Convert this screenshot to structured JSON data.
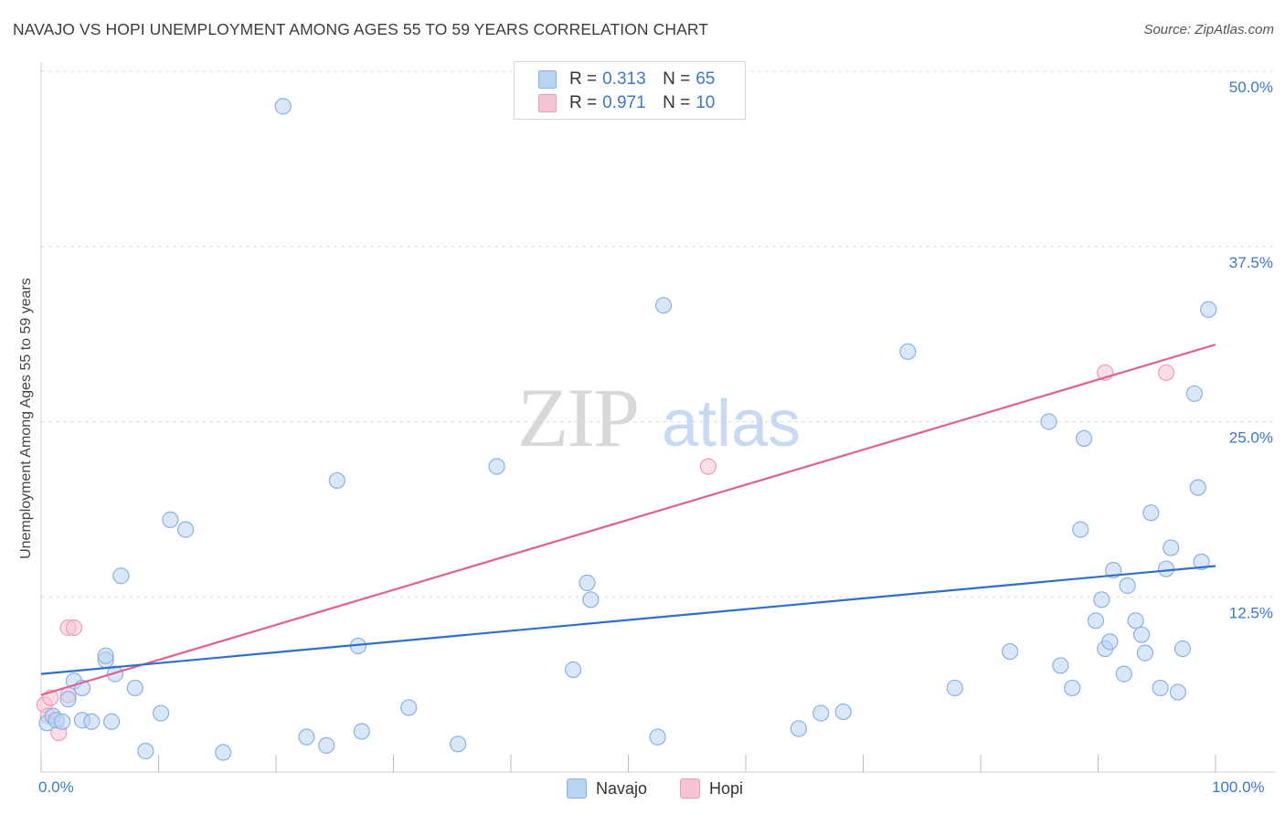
{
  "title": "NAVAJO VS HOPI UNEMPLOYMENT AMONG AGES 55 TO 59 YEARS CORRELATION CHART",
  "source": "Source: ZipAtlas.com",
  "watermark": {
    "zip": "ZIP",
    "atlas": "atlas"
  },
  "legend": {
    "navajo": {
      "r_label": "R = ",
      "r_value": "0.313",
      "n_label": "N = ",
      "n_value": "65"
    },
    "hopi": {
      "r_label": "R = ",
      "r_value": "0.971",
      "n_label": "N = ",
      "n_value": "10"
    }
  },
  "colors": {
    "navajo_fill": "#b9d3f2",
    "navajo_stroke": "#8ab2e3",
    "navajo_line": "#2f6fcb",
    "hopi_fill": "#f6c3d3",
    "hopi_stroke": "#ee9db7",
    "hopi_line": "#e0608e",
    "tick_label": "#3b78c7",
    "grid": "#dddddd"
  },
  "chart_data": {
    "type": "scatter",
    "ylabel": "Unemployment Among Ages 55 to 59 years",
    "xlim": [
      0,
      100
    ],
    "ylim": [
      0,
      50
    ],
    "x_tick_labels": [
      {
        "value": 0,
        "label": "0.0%"
      },
      {
        "value": 100,
        "label": "100.0%"
      }
    ],
    "y_tick_labels": [
      {
        "value": 12.5,
        "label": "12.5%"
      },
      {
        "value": 25.0,
        "label": "25.0%"
      },
      {
        "value": 37.5,
        "label": "37.5%"
      },
      {
        "value": 50.0,
        "label": "50.0%"
      }
    ],
    "grid": true,
    "legend_placement": "bottom",
    "series": [
      {
        "name": "Navajo",
        "trend": {
          "x0": 0,
          "y0": 7.0,
          "x1": 100,
          "y1": 14.7
        },
        "points": [
          [
            0.5,
            3.5
          ],
          [
            1,
            4.0
          ],
          [
            1.3,
            3.7
          ],
          [
            1.8,
            3.6
          ],
          [
            2.3,
            5.2
          ],
          [
            2.8,
            6.5
          ],
          [
            3.5,
            6.0
          ],
          [
            3.5,
            3.7
          ],
          [
            4.3,
            3.6
          ],
          [
            5.5,
            8.0
          ],
          [
            5.5,
            8.3
          ],
          [
            6.0,
            3.6
          ],
          [
            6.3,
            7.0
          ],
          [
            6.8,
            14.0
          ],
          [
            8.0,
            6.0
          ],
          [
            8.9,
            1.5
          ],
          [
            10.2,
            4.2
          ],
          [
            11.0,
            18.0
          ],
          [
            12.3,
            17.3
          ],
          [
            15.5,
            1.4
          ],
          [
            20.6,
            47.5
          ],
          [
            22.6,
            2.5
          ],
          [
            24.3,
            1.9
          ],
          [
            25.2,
            20.8
          ],
          [
            27.0,
            9.0
          ],
          [
            27.3,
            2.9
          ],
          [
            31.3,
            4.6
          ],
          [
            35.5,
            2.0
          ],
          [
            38.8,
            21.8
          ],
          [
            45.3,
            7.3
          ],
          [
            46.5,
            13.5
          ],
          [
            46.8,
            12.3
          ],
          [
            52.5,
            2.5
          ],
          [
            53.0,
            33.3
          ],
          [
            64.5,
            3.1
          ],
          [
            66.4,
            4.2
          ],
          [
            68.3,
            4.3
          ],
          [
            73.8,
            30.0
          ],
          [
            77.8,
            6.0
          ],
          [
            82.5,
            8.6
          ],
          [
            85.8,
            25.0
          ],
          [
            86.8,
            7.6
          ],
          [
            87.8,
            6.0
          ],
          [
            88.5,
            17.3
          ],
          [
            88.8,
            23.8
          ],
          [
            89.8,
            10.8
          ],
          [
            90.3,
            12.3
          ],
          [
            90.6,
            8.8
          ],
          [
            91.0,
            9.3
          ],
          [
            91.3,
            14.4
          ],
          [
            92.2,
            7.0
          ],
          [
            92.5,
            13.3
          ],
          [
            93.2,
            10.8
          ],
          [
            93.7,
            9.8
          ],
          [
            94.0,
            8.5
          ],
          [
            94.5,
            18.5
          ],
          [
            95.3,
            6.0
          ],
          [
            95.8,
            14.5
          ],
          [
            96.2,
            16.0
          ],
          [
            96.8,
            5.7
          ],
          [
            97.2,
            8.8
          ],
          [
            98.2,
            27.0
          ],
          [
            98.5,
            20.3
          ],
          [
            98.8,
            15.0
          ],
          [
            99.4,
            33.0
          ]
        ]
      },
      {
        "name": "Hopi",
        "trend": {
          "x0": 0,
          "y0": 5.5,
          "x1": 100,
          "y1": 30.5
        },
        "points": [
          [
            0.3,
            4.8
          ],
          [
            0.8,
            5.3
          ],
          [
            1.5,
            2.8
          ],
          [
            2.3,
            5.5
          ],
          [
            2.3,
            10.3
          ],
          [
            2.8,
            10.3
          ],
          [
            56.8,
            21.8
          ],
          [
            90.6,
            28.5
          ],
          [
            95.8,
            28.5
          ],
          [
            0.6,
            4.0
          ]
        ]
      }
    ]
  }
}
